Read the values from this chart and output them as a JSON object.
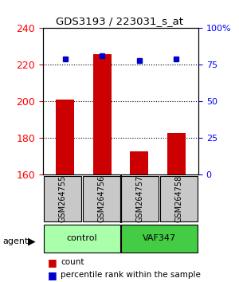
{
  "title": "GDS3193 / 223031_s_at",
  "samples": [
    "GSM264755",
    "GSM264756",
    "GSM264757",
    "GSM264758"
  ],
  "groups": [
    "control",
    "control",
    "VAF347",
    "VAF347"
  ],
  "group_colors": [
    "#90EE90",
    "#90EE90",
    "#32CD32",
    "#32CD32"
  ],
  "counts": [
    201,
    226,
    173,
    183
  ],
  "percentile_ranks": [
    79,
    81,
    78,
    79
  ],
  "ylim_left": [
    160,
    240
  ],
  "ylim_right": [
    0,
    100
  ],
  "yticks_left": [
    160,
    180,
    200,
    220,
    240
  ],
  "yticks_right": [
    0,
    25,
    50,
    75,
    100
  ],
  "bar_color": "#CC0000",
  "dot_color": "#0000CC",
  "bar_bottom": 160,
  "grid_yticks": [
    180,
    200,
    220
  ],
  "label_count": "count",
  "label_percentile": "percentile rank within the sample",
  "group_label": "agent"
}
